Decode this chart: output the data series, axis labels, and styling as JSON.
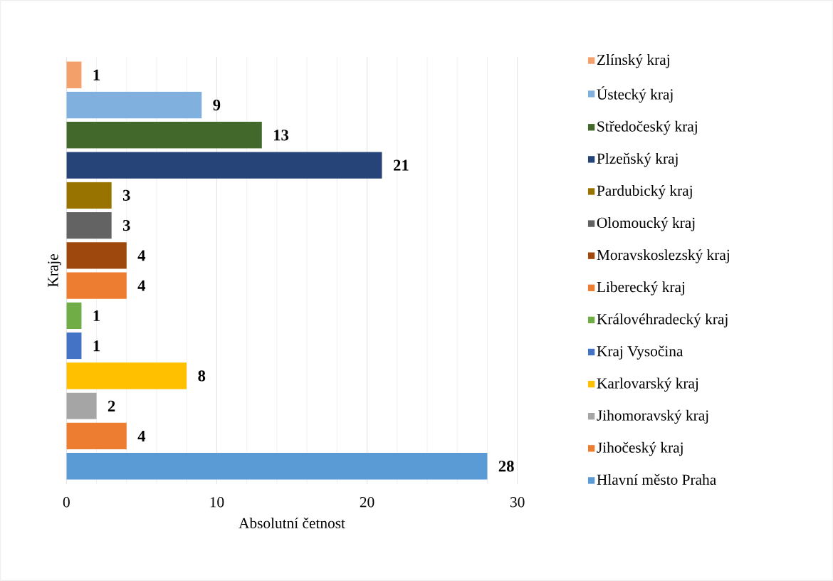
{
  "chart_data": {
    "type": "bar",
    "orientation": "horizontal",
    "xlabel": "Absolutní četnost",
    "ylabel": "Kraje",
    "categories": [
      null
    ],
    "series": [
      {
        "name": "Zlínský kraj",
        "color": "#f4a06a",
        "values": [
          1
        ]
      },
      {
        "name": "Ústecký kraj",
        "color": "#7fb0de",
        "values": [
          9
        ]
      },
      {
        "name": "Středočeský kraj",
        "color": "#43682b",
        "values": [
          13
        ]
      },
      {
        "name": "Plzeňský kraj",
        "color": "#264478",
        "values": [
          21
        ]
      },
      {
        "name": "Pardubický kraj",
        "color": "#997300",
        "values": [
          3
        ]
      },
      {
        "name": "Olomoucký kraj",
        "color": "#636363",
        "values": [
          3
        ]
      },
      {
        "name": "Moravskoslezský kraj",
        "color": "#9e480e",
        "values": [
          4
        ]
      },
      {
        "name": "Liberecký kraj",
        "color": "#ed7d31",
        "values": [
          4
        ]
      },
      {
        "name": "Královéhradecký kraj",
        "color": "#70ad47",
        "values": [
          1
        ]
      },
      {
        "name": "Kraj Vysočina",
        "color": "#4472c4",
        "values": [
          1
        ]
      },
      {
        "name": "Karlovarský kraj",
        "color": "#ffc000",
        "values": [
          8
        ]
      },
      {
        "name": "Jihomoravský kraj",
        "color": "#a5a5a5",
        "values": [
          2
        ]
      },
      {
        "name": "Jihočeský kraj",
        "color": "#ed7d31",
        "values": [
          4
        ]
      },
      {
        "name": "Hlavní město Praha",
        "color": "#5b9bd5",
        "values": [
          28
        ]
      }
    ],
    "xlim": [
      0,
      30
    ],
    "xticks": [
      0,
      10,
      20,
      30
    ],
    "grid": "x",
    "data_labels": true,
    "legend": "right",
    "tick_labels": "x"
  }
}
